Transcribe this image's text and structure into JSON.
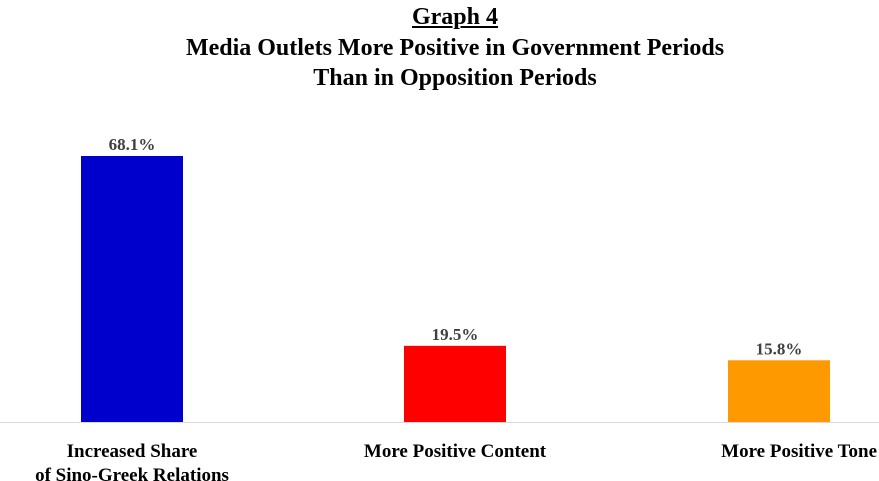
{
  "chart_data": {
    "type": "bar",
    "graph_label": "Graph 4",
    "title_lines": [
      "Media Outlets More Positive in Government Periods",
      "Than in Opposition Periods"
    ],
    "categories": [
      [
        "Increased Share",
        "of Sino-Greek Relations"
      ],
      [
        "More Positive Content"
      ],
      [
        "More Positive Tone"
      ]
    ],
    "values": [
      68.1,
      19.5,
      15.8
    ],
    "value_labels": [
      "68.1%",
      "19.5%",
      "15.8%"
    ],
    "colors": [
      "#0000CC",
      "#FF0000",
      "#FF9900"
    ],
    "xlabel": "",
    "ylabel": "",
    "ylim": [
      0,
      68.1
    ],
    "grid": false,
    "legend": "none"
  }
}
